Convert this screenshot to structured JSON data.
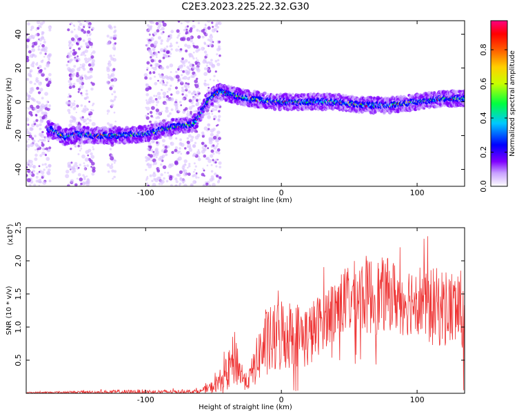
{
  "title": "C2E3.2023.225.22.32.G30",
  "chart_data": [
    {
      "type": "heatmap",
      "xlabel": "Height of straight line (km)",
      "ylabel": "Frequency (Hz)",
      "xlim": [
        -188,
        135
      ],
      "ylim": [
        -50,
        48
      ],
      "xticks": [
        -100,
        0,
        100
      ],
      "yticks": [
        -40,
        -20,
        0,
        20,
        40
      ],
      "ridge": {
        "x": [
          -172,
          -165,
          -160,
          -150,
          -140,
          -120,
          -100,
          -95,
          -85,
          -75,
          -65,
          -60,
          -55,
          -50,
          -45,
          -35,
          -25,
          -15,
          -5,
          0,
          20,
          40,
          60,
          80,
          100,
          120,
          135
        ],
        "y": [
          -16,
          -18,
          -21,
          -19,
          -20,
          -20,
          -19,
          -18,
          -16,
          -14,
          -13,
          -8,
          0,
          4,
          6,
          4,
          2,
          1,
          0,
          0,
          0,
          0,
          -2,
          -2,
          0,
          2,
          2
        ]
      },
      "colorbar": {
        "label": "Normalized spectral amplitude",
        "range": [
          0,
          0.97
        ],
        "ticks": [
          "0.0",
          "0.2",
          "0.4",
          "0.6",
          "0.8"
        ],
        "colors": [
          "#ffffff",
          "#7f00ff",
          "#0000ff",
          "#00c8ff",
          "#00ff00",
          "#ffff00",
          "#ff8000",
          "#ff0000",
          "#ff0080"
        ]
      }
    },
    {
      "type": "line",
      "xlabel": "Height of straight line (km)",
      "ylabel": "SNR (10 * v/v)",
      "multiplier": "(x10",
      "multiplier_exp": "4",
      "multiplier_close": ")",
      "xlim": [
        -188,
        135
      ],
      "ylim": [
        0,
        2.5
      ],
      "xticks": [
        -100,
        0,
        100
      ],
      "yticks": [
        0.5,
        1.0,
        1.5,
        2.0,
        2.5
      ],
      "ytick_labels": [
        "0.5",
        "1.0",
        "1.5",
        "2.0",
        "2.5"
      ],
      "color": "#ee3333",
      "envelope": {
        "x": [
          -188,
          -100,
          -90,
          -60,
          -50,
          -40,
          -34,
          -30,
          -25,
          -20,
          -15,
          -10,
          -5,
          0,
          10,
          20,
          30,
          40,
          50,
          60,
          70,
          80,
          90,
          100,
          110,
          120,
          130,
          135
        ],
        "base": [
          0.01,
          0.02,
          0.02,
          0.03,
          0.1,
          0.3,
          0.55,
          0.3,
          0.15,
          0.4,
          0.65,
          0.75,
          0.8,
          0.9,
          0.9,
          0.85,
          1.1,
          1.3,
          1.4,
          1.5,
          1.45,
          1.5,
          1.4,
          1.45,
          1.3,
          1.3,
          1.25,
          1.2
        ],
        "amp": [
          0.01,
          0.04,
          0.03,
          0.03,
          0.1,
          0.25,
          0.45,
          0.25,
          0.1,
          0.3,
          0.45,
          0.55,
          0.55,
          0.6,
          0.5,
          0.5,
          0.45,
          0.5,
          0.55,
          0.6,
          0.6,
          0.55,
          0.55,
          0.55,
          0.6,
          0.6,
          0.6,
          0.7
        ]
      }
    }
  ]
}
